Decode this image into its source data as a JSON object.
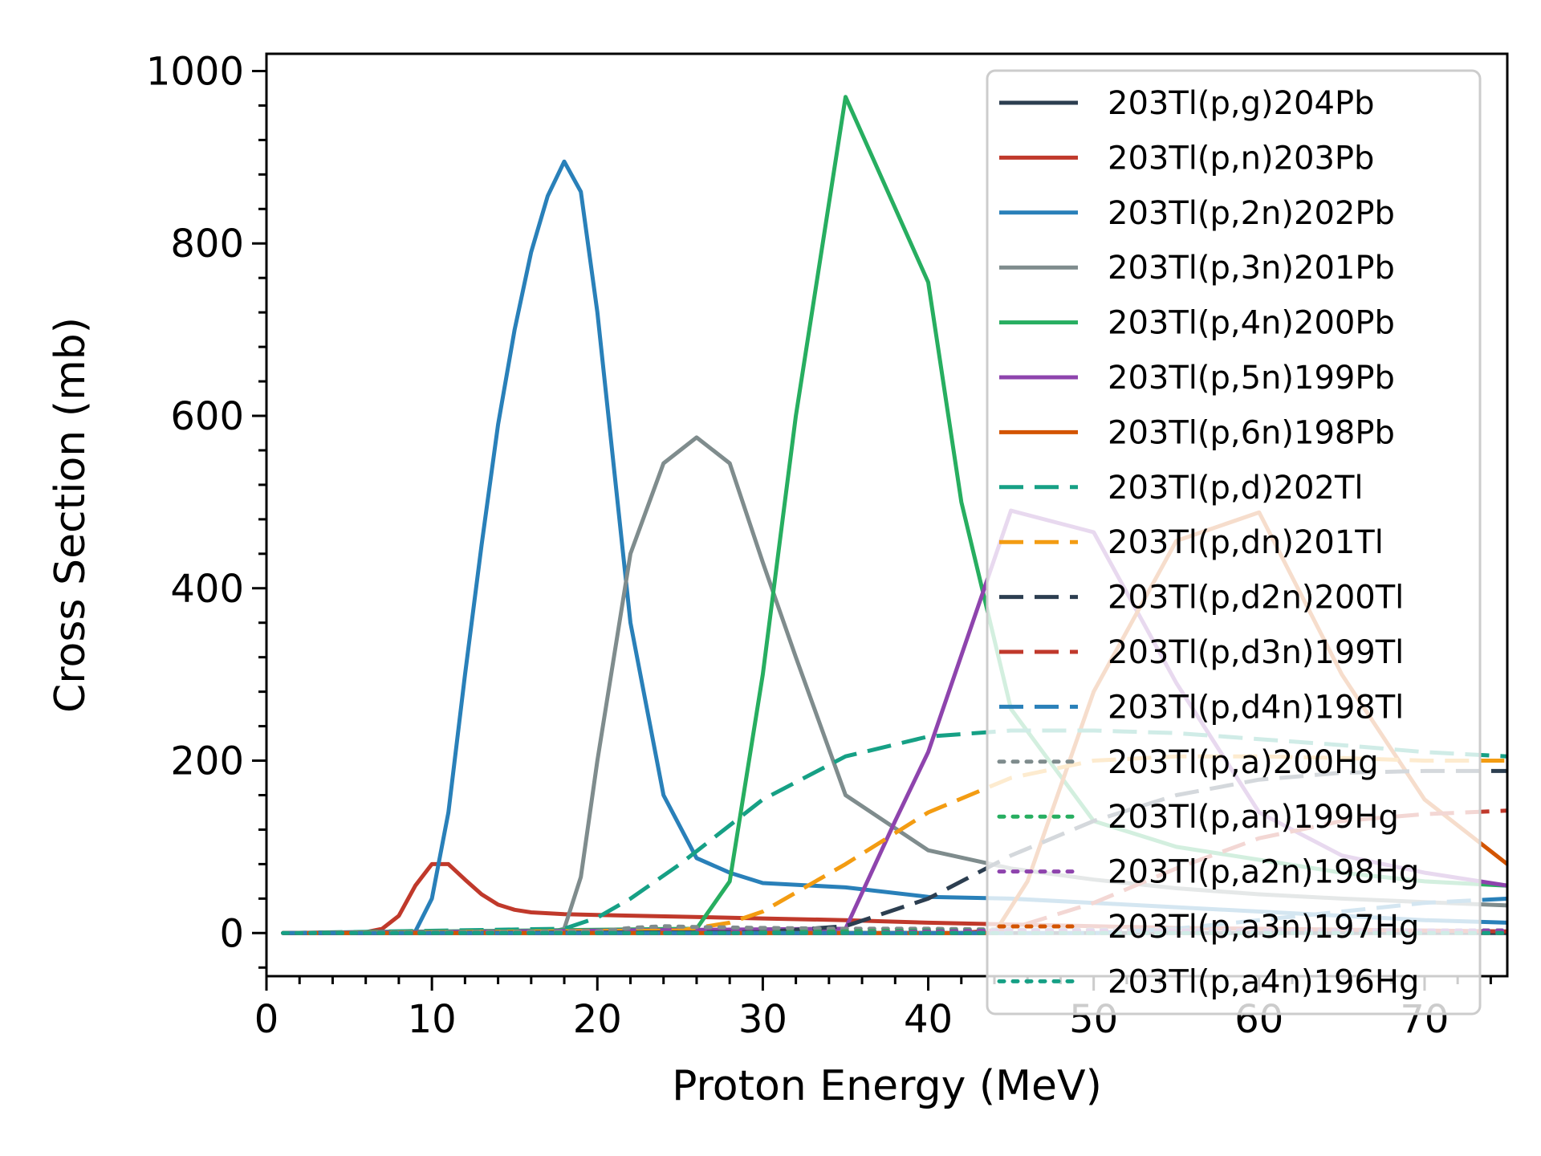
{
  "chart_data": {
    "type": "line",
    "xlabel": "Proton Energy (MeV)",
    "ylabel": "Cross Section (mb)",
    "xlim": [
      0,
      75
    ],
    "ylim": [
      -50,
      1020
    ],
    "xticks": [
      0,
      10,
      20,
      30,
      40,
      50,
      60,
      70
    ],
    "yticks": [
      0,
      200,
      400,
      600,
      800,
      1000
    ],
    "grid": false,
    "legend_position": "right",
    "series": [
      {
        "name": "203Tl(p,g)204Pb",
        "color": "#2c3e50",
        "style": "solid",
        "x": [
          1,
          75
        ],
        "y": [
          0,
          0
        ]
      },
      {
        "name": "203Tl(p,n)203Pb",
        "color": "#c0392b",
        "style": "solid",
        "x": [
          1,
          6,
          7,
          8,
          9,
          10,
          11,
          12,
          13,
          14,
          15,
          16,
          17,
          18,
          20,
          25,
          30,
          35,
          40,
          45,
          50,
          55,
          60,
          65,
          70,
          75
        ],
        "y": [
          0,
          1,
          5,
          20,
          55,
          80,
          80,
          62,
          45,
          33,
          27,
          24,
          23,
          22,
          21,
          19,
          17,
          15,
          12,
          10,
          8,
          6,
          5,
          4,
          3,
          2
        ]
      },
      {
        "name": "203Tl(p,2n)202Pb",
        "color": "#2980b9",
        "style": "solid",
        "x": [
          1,
          9,
          10,
          11,
          12,
          13,
          14,
          15,
          16,
          17,
          18,
          19,
          20,
          22,
          24,
          26,
          28,
          30,
          35,
          40,
          45,
          50,
          55,
          60,
          65,
          70,
          75
        ],
        "y": [
          0,
          2,
          40,
          140,
          300,
          450,
          590,
          700,
          790,
          855,
          895,
          860,
          720,
          360,
          160,
          87,
          70,
          58,
          53,
          42,
          40,
          35,
          30,
          25,
          20,
          15,
          12
        ]
      },
      {
        "name": "203Tl(p,3n)201Pb",
        "color": "#7f8c8d",
        "style": "solid",
        "x": [
          1,
          17,
          18,
          19,
          20,
          22,
          24,
          26,
          28,
          30,
          32,
          35,
          40,
          45,
          50,
          55,
          60,
          65,
          70,
          75
        ],
        "y": [
          0,
          0,
          5,
          65,
          200,
          440,
          545,
          575,
          545,
          430,
          320,
          160,
          96,
          75,
          62,
          52,
          45,
          40,
          36,
          32
        ]
      },
      {
        "name": "203Tl(p,4n)200Pb",
        "color": "#27ae60",
        "style": "solid",
        "x": [
          1,
          26,
          28,
          30,
          32,
          35,
          40,
          42,
          45,
          50,
          55,
          60,
          65,
          70,
          75
        ],
        "y": [
          0,
          5,
          60,
          300,
          600,
          970,
          755,
          500,
          260,
          130,
          100,
          85,
          70,
          60,
          55
        ]
      },
      {
        "name": "203Tl(p,5n)199Pb",
        "color": "#8e44ad",
        "style": "solid",
        "x": [
          1,
          35,
          38,
          40,
          45,
          50,
          55,
          60,
          65,
          70,
          75
        ],
        "y": [
          0,
          5,
          130,
          210,
          490,
          465,
          290,
          140,
          90,
          70,
          55
        ]
      },
      {
        "name": "203Tl(p,6n)198Pb",
        "color": "#d35400",
        "style": "solid",
        "x": [
          1,
          44,
          46,
          50,
          55,
          60,
          65,
          70,
          75
        ],
        "y": [
          0,
          0,
          60,
          280,
          455,
          488,
          300,
          155,
          80
        ]
      },
      {
        "name": "203Tl(p,d)202Tl",
        "color": "#16a085",
        "style": "dashed",
        "x": [
          1,
          18,
          20,
          22,
          25,
          28,
          30,
          35,
          40,
          45,
          50,
          55,
          60,
          65,
          70,
          75
        ],
        "y": [
          0,
          5,
          18,
          40,
          80,
          125,
          155,
          205,
          228,
          235,
          235,
          232,
          225,
          218,
          210,
          205
        ]
      },
      {
        "name": "203Tl(p,dn)201Tl",
        "color": "#f39c12",
        "style": "dashed",
        "x": [
          1,
          25,
          28,
          30,
          35,
          40,
          45,
          50,
          55,
          60,
          65,
          70,
          75
        ],
        "y": [
          0,
          3,
          12,
          25,
          80,
          140,
          180,
          200,
          205,
          205,
          203,
          200,
          200
        ]
      },
      {
        "name": "203Tl(p,d2n)200Tl",
        "color": "#2c3e50",
        "style": "dashed",
        "x": [
          1,
          30,
          35,
          40,
          45,
          50,
          55,
          60,
          65,
          70,
          75
        ],
        "y": [
          0,
          1,
          8,
          40,
          90,
          130,
          160,
          178,
          186,
          188,
          188
        ]
      },
      {
        "name": "203Tl(p,d3n)199Tl",
        "color": "#c0392b",
        "style": "dashed",
        "x": [
          1,
          42,
          45,
          50,
          55,
          60,
          65,
          70,
          75
        ],
        "y": [
          0,
          0,
          5,
          35,
          75,
          110,
          130,
          138,
          142
        ]
      },
      {
        "name": "203Tl(p,d4n)198Tl",
        "color": "#2980b9",
        "style": "dashed",
        "x": [
          1,
          50,
          55,
          60,
          65,
          70,
          75
        ],
        "y": [
          0,
          0,
          5,
          15,
          25,
          35,
          40
        ]
      },
      {
        "name": "203Tl(p,a)200Hg",
        "color": "#7f8c8d",
        "style": "dotted",
        "x": [
          1,
          20,
          22,
          24,
          26,
          30,
          35,
          40,
          45,
          50,
          55,
          60,
          65,
          70,
          75
        ],
        "y": [
          0,
          2,
          6,
          8,
          7,
          6,
          5,
          5,
          4,
          4,
          4,
          3,
          3,
          3,
          3
        ]
      },
      {
        "name": "203Tl(p,an)199Hg",
        "color": "#27ae60",
        "style": "dotted",
        "x": [
          1,
          28,
          30,
          35,
          40,
          45,
          50,
          55,
          60,
          65,
          70,
          75
        ],
        "y": [
          0,
          0,
          1,
          2,
          3,
          3,
          3,
          3,
          3,
          3,
          3,
          3
        ]
      },
      {
        "name": "203Tl(p,a2n)198Hg",
        "color": "#8e44ad",
        "style": "dotted",
        "x": [
          1,
          35,
          40,
          45,
          50,
          55,
          60,
          65,
          70,
          75
        ],
        "y": [
          0,
          0,
          2,
          3,
          3,
          3,
          3,
          3,
          3,
          3
        ]
      },
      {
        "name": "203Tl(p,a3n)197Hg",
        "color": "#d35400",
        "style": "dotted",
        "x": [
          1,
          75
        ],
        "y": [
          0,
          0
        ]
      },
      {
        "name": "203Tl(p,a4n)196Hg",
        "color": "#16a085",
        "style": "dotted",
        "x": [
          1,
          75
        ],
        "y": [
          0,
          0
        ]
      }
    ]
  }
}
